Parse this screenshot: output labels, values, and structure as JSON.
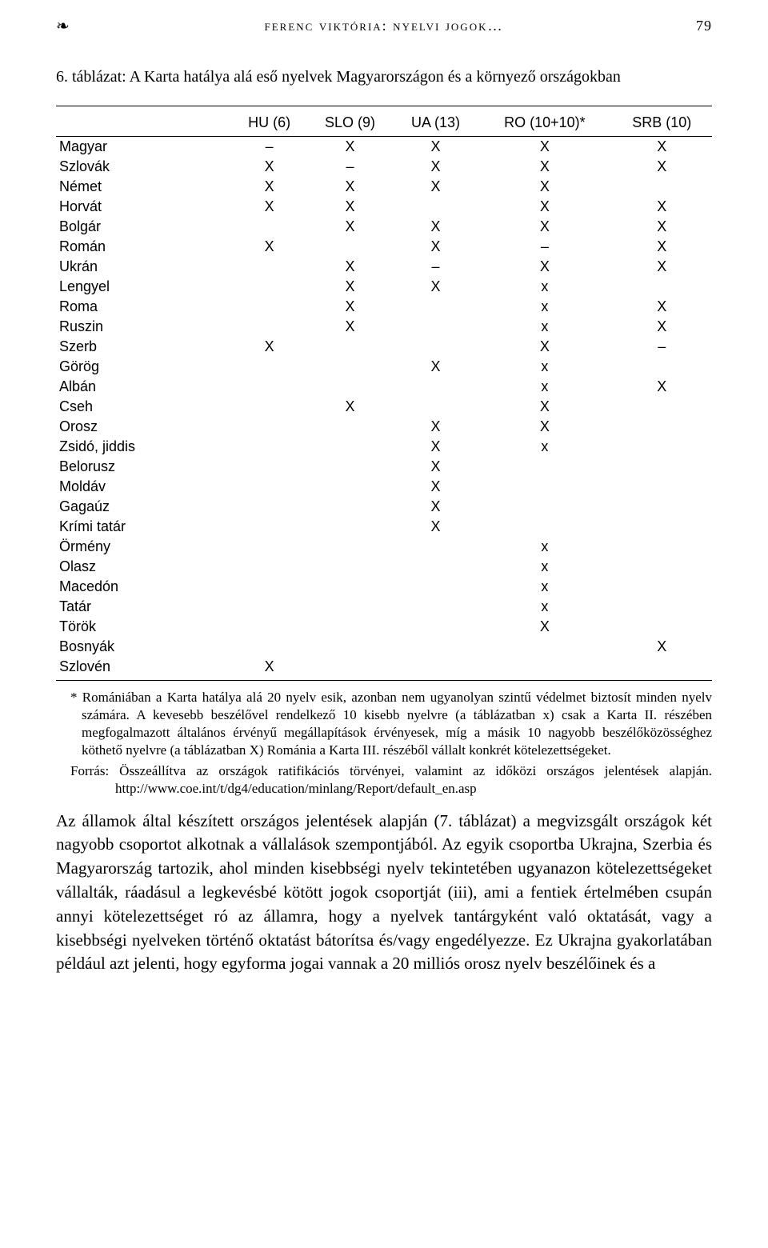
{
  "header": {
    "ornament": "❧",
    "running_head": "ferenc viktória: nyelvi jogok…",
    "page_number": "79"
  },
  "caption": "6. táblázat: A Karta hatálya alá eső nyelvek Magyarországon és a környező országokban",
  "table": {
    "columns": [
      "",
      "HU (6)",
      "SLO (9)",
      "UA (13)",
      "RO (10+10)*",
      "SRB (10)"
    ],
    "rows": [
      [
        "Magyar",
        "–",
        "X",
        "X",
        "X",
        "X"
      ],
      [
        "Szlovák",
        "X",
        "–",
        "X",
        "X",
        "X"
      ],
      [
        "Német",
        "X",
        "X",
        "X",
        "X",
        ""
      ],
      [
        "Horvát",
        "X",
        "X",
        "",
        "X",
        "X"
      ],
      [
        "Bolgár",
        "",
        "X",
        "X",
        "X",
        "X"
      ],
      [
        "Román",
        "X",
        "",
        "X",
        "–",
        "X"
      ],
      [
        "Ukrán",
        "",
        "X",
        "–",
        "X",
        "X"
      ],
      [
        "Lengyel",
        "",
        "X",
        "X",
        "x",
        ""
      ],
      [
        "Roma",
        "",
        "X",
        "",
        "x",
        "X"
      ],
      [
        "Ruszin",
        "",
        "X",
        "",
        "x",
        "X"
      ],
      [
        "Szerb",
        "X",
        "",
        "",
        "X",
        "–"
      ],
      [
        "Görög",
        "",
        "",
        "X",
        "x",
        ""
      ],
      [
        "Albán",
        "",
        "",
        "",
        "x",
        "X"
      ],
      [
        "Cseh",
        "",
        "X",
        "",
        "X",
        ""
      ],
      [
        "Orosz",
        "",
        "",
        "X",
        "X",
        ""
      ],
      [
        "Zsidó, jiddis",
        "",
        "",
        "X",
        "x",
        ""
      ],
      [
        "Belorusz",
        "",
        "",
        "X",
        "",
        ""
      ],
      [
        "Moldáv",
        "",
        "",
        "X",
        "",
        ""
      ],
      [
        "Gagaúz",
        "",
        "",
        "X",
        "",
        ""
      ],
      [
        "Krími tatár",
        "",
        "",
        "X",
        "",
        ""
      ],
      [
        "Örmény",
        "",
        "",
        "",
        "x",
        ""
      ],
      [
        "Olasz",
        "",
        "",
        "",
        "x",
        ""
      ],
      [
        "Macedón",
        "",
        "",
        "",
        "x",
        ""
      ],
      [
        "Tatár",
        "",
        "",
        "",
        "x",
        ""
      ],
      [
        "Török",
        "",
        "",
        "",
        "X",
        ""
      ],
      [
        "Bosnyák",
        "",
        "",
        "",
        "",
        "X"
      ],
      [
        "Szlovén",
        "X",
        "",
        "",
        "",
        ""
      ]
    ]
  },
  "footnote": "* Romániában a Karta hatálya alá 20 nyelv esik, azonban nem ugyanolyan szintű védelmet biztosít minden nyelv számára. A kevesebb beszélővel rendelkező 10 kisebb nyelvre (a táblázatban x) csak a Karta II. részében megfogalmazott általános érvényű megállapítások érvényesek, míg a másik 10 nagyobb beszélőközösséghez köthető nyelvre (a táblázatban X) Románia a Karta III. részéből vállalt konkrét kötelezettségeket.",
  "source": "Forrás: Összeállítva az országok ratifikációs törvényei, valamint az időközi országos jelentések alapján. http://www.coe.int/t/dg4/education/minlang/Report/default_en.asp",
  "paragraph": "Az államok által készített országos jelentések alapján (7. táblázat) a megvizsgált országok két nagyobb csoportot alkotnak a vállalások szempontjából. Az egyik csoportba Ukrajna, Szerbia és Magyarország tartozik, ahol minden kisebbségi nyelv tekintetében ugyanazon kötelezettségeket vállalták, ráadásul a legkevésbé kötött jogok csoportját (iii), ami a fentiek értelmében csupán annyi kötelezettséget ró az államra, hogy a nyelvek tantárgyként való oktatását, vagy a kisebbségi nyelveken történő oktatást bátorítsa és/vagy engedélyezze. Ez Ukrajna gyakorlatában például azt jelenti, hogy egyforma jogai vannak a 20 milliós orosz nyelv beszélőinek és a"
}
